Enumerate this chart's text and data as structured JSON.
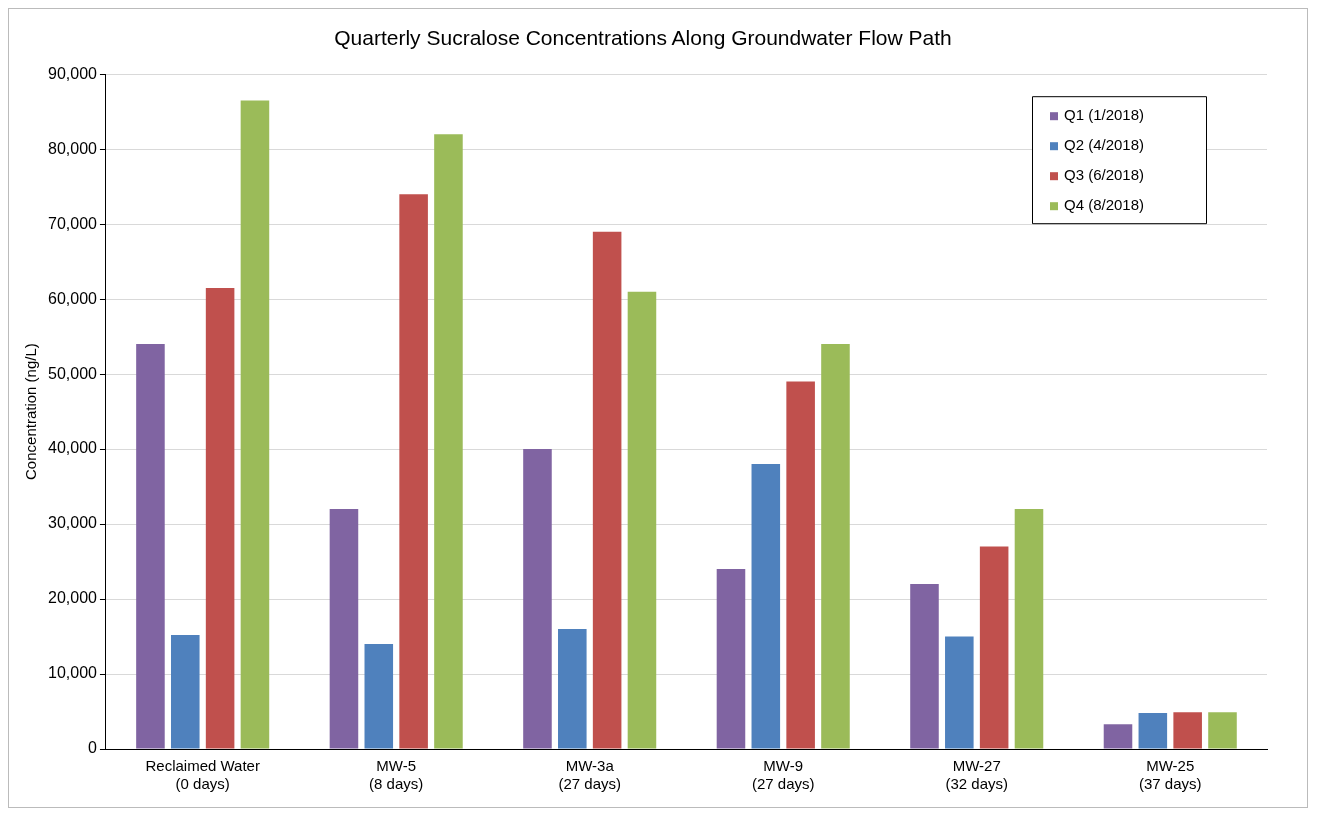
{
  "chart_data": {
    "type": "bar",
    "title": "Quarterly Sucralose Concentrations Along Groundwater Flow Path",
    "ylabel": "Concentration (ng/L)",
    "categories": [
      "Reclaimed Water\n(0 days)",
      "MW-5\n(8 days)",
      "MW-3a\n(27 days)",
      "MW-9\n(27 days)",
      "MW-27\n(32 days)",
      "MW-25\n(37 days)"
    ],
    "series": [
      {
        "name": "Q1 (1/2018)",
        "color": "#8064a2",
        "values": [
          54000,
          32000,
          40000,
          24000,
          22000,
          3300
        ]
      },
      {
        "name": "Q2 (4/2018)",
        "color": "#4f81bd",
        "values": [
          15200,
          14000,
          16000,
          38000,
          15000,
          4800
        ]
      },
      {
        "name": "Q3 (6/2018)",
        "color": "#c0504d",
        "values": [
          61500,
          74000,
          69000,
          49000,
          27000,
          4900
        ]
      },
      {
        "name": "Q4 (8/2018)",
        "color": "#9bbb59",
        "values": [
          86500,
          82000,
          61000,
          54000,
          32000,
          4900
        ]
      }
    ],
    "ylim": [
      0,
      90000
    ],
    "yticks": [
      {
        "value": 0,
        "label": "0"
      },
      {
        "value": 10000,
        "label": "10,000"
      },
      {
        "value": 20000,
        "label": "20,000"
      },
      {
        "value": 30000,
        "label": "30,000"
      },
      {
        "value": 40000,
        "label": "40,000"
      },
      {
        "value": 50000,
        "label": "50,000"
      },
      {
        "value": 60000,
        "label": "60,000"
      },
      {
        "value": 70000,
        "label": "70,000"
      },
      {
        "value": 80000,
        "label": "80,000"
      },
      {
        "value": 90000,
        "label": "90,000"
      }
    ],
    "grid": "y",
    "legend": "top right"
  }
}
